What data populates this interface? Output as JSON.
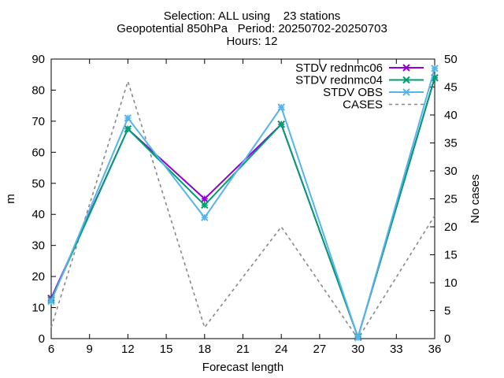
{
  "chart_data": {
    "type": "line",
    "title_lines": [
      "Selection: ALL using    23 stations",
      "Geopotential 850hPa   Period: 20250702-20250703",
      "Hours: 12"
    ],
    "xlabel": "Forecast length",
    "ylabel": "m",
    "y2label": "No cases",
    "x": [
      6,
      12,
      18,
      24,
      30,
      36
    ],
    "xticks": [
      "6",
      "9",
      "12",
      "15",
      "18",
      "21",
      "24",
      "27",
      "30",
      "33",
      "36"
    ],
    "xlim": [
      6,
      36
    ],
    "ylim": [
      0,
      90
    ],
    "yticks": [
      "0",
      "10",
      "20",
      "30",
      "40",
      "50",
      "60",
      "70",
      "80",
      "90"
    ],
    "y2lim": [
      0,
      50
    ],
    "y2ticks": [
      "0",
      "5",
      "10",
      "15",
      "20",
      "25",
      "30",
      "35",
      "40",
      "45",
      "50"
    ],
    "legend_position": "top-right",
    "series": [
      {
        "name": "STDV rednmc06",
        "axis": "left",
        "color": "#9400d3",
        "style": "solid",
        "marker": "x",
        "values": [
          13,
          67.5,
          45,
          69,
          0.5,
          84
        ]
      },
      {
        "name": "STDV rednmc04",
        "axis": "left",
        "color": "#009e73",
        "style": "solid",
        "marker": "x",
        "values": [
          12.5,
          67.5,
          43,
          69,
          0.5,
          84
        ]
      },
      {
        "name": "STDV OBS",
        "axis": "left",
        "color": "#56b4e9",
        "style": "solid",
        "marker": "x",
        "values": [
          12,
          71,
          39,
          74.5,
          0.3,
          87
        ]
      },
      {
        "name": "CASES",
        "axis": "right",
        "color": "#888888",
        "style": "dashed",
        "marker": "none",
        "values": [
          2,
          46,
          2,
          20,
          0,
          22
        ]
      }
    ]
  }
}
